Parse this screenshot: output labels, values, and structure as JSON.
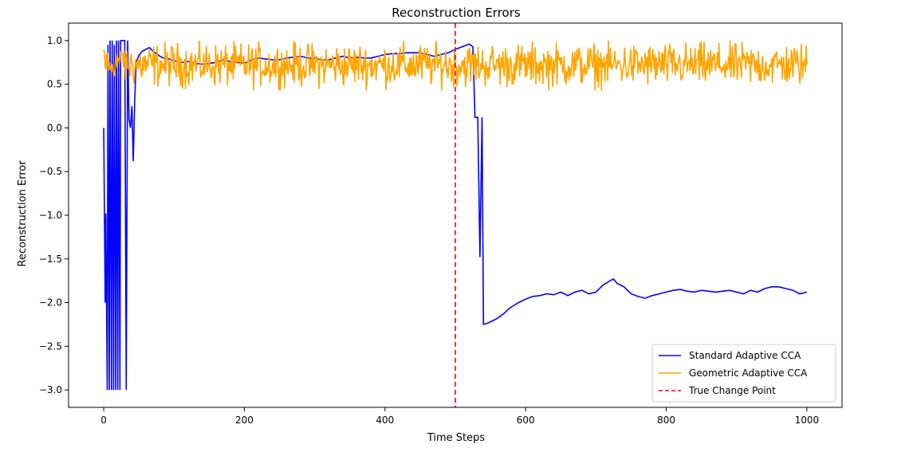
{
  "chart_data": {
    "type": "line",
    "title": "Reconstruction Errors",
    "xlabel": "Time Steps",
    "ylabel": "Reconstruction Error",
    "xlim": [
      -50,
      1050
    ],
    "ylim": [
      -3.2,
      1.2
    ],
    "xticks": [
      0,
      200,
      400,
      600,
      800,
      1000
    ],
    "yticks": [
      1.0,
      0.5,
      0.0,
      -0.5,
      -1.0,
      -1.5,
      -2.0,
      -2.5,
      -3.0
    ],
    "xtick_labels": [
      "0",
      "200",
      "400",
      "600",
      "800",
      "1000"
    ],
    "ytick_labels": [
      "1.0",
      "0.5",
      "0.0",
      "−0.5",
      "−1.0",
      "−1.5",
      "−2.0",
      "−2.5",
      "−3.0"
    ],
    "grid": false,
    "legend_position": "lower-right",
    "series": [
      {
        "name": "Standard Adaptive CCA",
        "color": "#0000ff",
        "style": "solid",
        "x": [
          0,
          2,
          3,
          5,
          6,
          8,
          9,
          11,
          12,
          14,
          15,
          17,
          18,
          20,
          21,
          23,
          24,
          26,
          28,
          30,
          32,
          34,
          36,
          38,
          40,
          42,
          44,
          46,
          50,
          55,
          60,
          65,
          70,
          75,
          80,
          85,
          90,
          95,
          100,
          110,
          120,
          130,
          140,
          150,
          160,
          170,
          180,
          190,
          200,
          210,
          220,
          230,
          240,
          250,
          260,
          270,
          280,
          290,
          300,
          310,
          320,
          330,
          340,
          350,
          360,
          370,
          380,
          390,
          400,
          410,
          420,
          430,
          440,
          450,
          460,
          470,
          480,
          490,
          500,
          510,
          520,
          525,
          528,
          530,
          532,
          535,
          538,
          540,
          545,
          550,
          555,
          560,
          565,
          570,
          575,
          580,
          590,
          600,
          610,
          620,
          630,
          640,
          650,
          660,
          670,
          680,
          690,
          700,
          710,
          720,
          725,
          730,
          740,
          750,
          760,
          770,
          780,
          790,
          800,
          810,
          820,
          830,
          840,
          850,
          860,
          870,
          880,
          890,
          900,
          910,
          920,
          930,
          940,
          950,
          960,
          970,
          980,
          990,
          1000
        ],
        "values": [
          0.0,
          -2.0,
          -0.98,
          -3.0,
          0.95,
          -3.0,
          1.0,
          -3.0,
          1.0,
          -3.0,
          0.95,
          -3.0,
          1.0,
          -3.0,
          1.0,
          -3.0,
          1.0,
          1.0,
          1.0,
          1.0,
          -3.0,
          1.0,
          0.1,
          0.0,
          0.25,
          -0.38,
          0.3,
          0.75,
          0.83,
          0.88,
          0.9,
          0.92,
          0.88,
          0.85,
          0.82,
          0.8,
          0.8,
          0.78,
          0.77,
          0.75,
          0.76,
          0.74,
          0.73,
          0.74,
          0.75,
          0.78,
          0.76,
          0.75,
          0.74,
          0.78,
          0.8,
          0.79,
          0.78,
          0.78,
          0.8,
          0.81,
          0.82,
          0.8,
          0.8,
          0.78,
          0.78,
          0.8,
          0.82,
          0.8,
          0.81,
          0.8,
          0.8,
          0.82,
          0.84,
          0.85,
          0.85,
          0.86,
          0.86,
          0.86,
          0.84,
          0.82,
          0.84,
          0.86,
          0.9,
          0.93,
          0.96,
          0.93,
          0.12,
          0.12,
          0.12,
          -1.48,
          0.12,
          -2.25,
          -2.24,
          -2.22,
          -2.2,
          -2.18,
          -2.15,
          -2.12,
          -2.08,
          -2.05,
          -2.0,
          -1.96,
          -1.93,
          -1.92,
          -1.9,
          -1.91,
          -1.88,
          -1.92,
          -1.88,
          -1.86,
          -1.9,
          -1.88,
          -1.8,
          -1.75,
          -1.73,
          -1.78,
          -1.82,
          -1.9,
          -1.93,
          -1.95,
          -1.92,
          -1.9,
          -1.88,
          -1.86,
          -1.85,
          -1.87,
          -1.88,
          -1.86,
          -1.87,
          -1.88,
          -1.87,
          -1.86,
          -1.88,
          -1.9,
          -1.86,
          -1.88,
          -1.84,
          -1.82,
          -1.82,
          -1.84,
          -1.86,
          -1.9,
          -1.88
        ]
      },
      {
        "name": "Geometric Adaptive CCA",
        "color": "#ffa500",
        "style": "solid",
        "mean": 0.72,
        "amplitude": 0.12,
        "x_range": [
          0,
          1000
        ],
        "n_points": 1000
      },
      {
        "name": "True Change Point",
        "color": "#ff0000",
        "style": "dashed",
        "x": 500
      }
    ]
  }
}
